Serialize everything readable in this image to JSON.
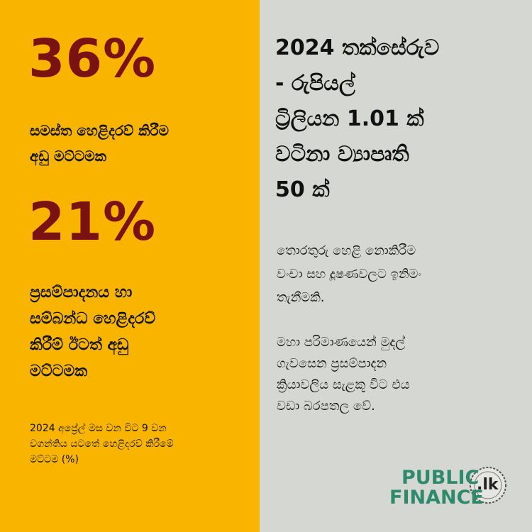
{
  "left": {
    "stat1": "36%",
    "stat1_text": [
      "සමස්ත හෙළිදරව් කිරීම",
      "අඩු මට්ටමක"
    ],
    "stat2": "21%",
    "stat2_text": [
      "ප්‍රසම්පාදනය හා",
      "සම්බන්ධ හෙළිදරව්",
      "කිරීම් ඊටත් අඩු",
      "මට්ටමක"
    ],
    "footnote": [
      "2024 අප්‍රේල් මස වන විට 9 වන",
      "වගන්තිය යටතේ හෙළිදරව් කිරීමේ",
      "මට්ටම (%)"
    ]
  },
  "right": {
    "title": [
      "2024 තක්සේරුව",
      "- රුපියල්",
      "ට්‍රිලියන 1.01 ක්",
      "වටිනා ව්‍යාපෘති",
      "50 ක්"
    ],
    "paragraph1": [
      "තොරතුරු හෙළි නොකිරීම",
      "වංචා සහ දූෂණවලට ඉනිමං",
      "තැනීමකි."
    ],
    "paragraph2": [
      "මහා පරිමාණයෙන් මුදල්",
      "ගැවසෙන ප්‍රසම්පාදන",
      "ක්‍රියාවලිය සැළකූ විට එය",
      "වඩා බරපතල වේ."
    ]
  },
  "logo": {
    "line1": "PUBLIC",
    "line2": "FINANCE",
    "suffix": ".lk"
  }
}
